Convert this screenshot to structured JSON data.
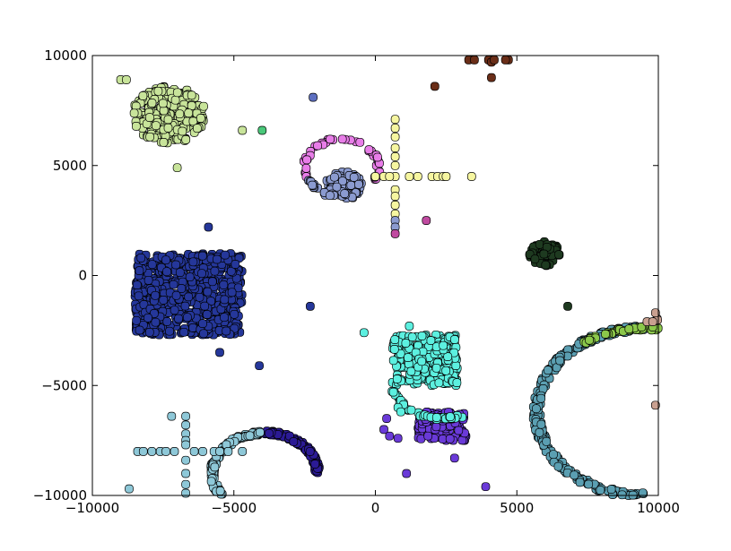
{
  "chart_data": {
    "type": "scatter",
    "xlim": [
      -10000,
      10000
    ],
    "ylim": [
      -10000,
      10000
    ],
    "x_ticks": [
      -10000,
      -5000,
      0,
      5000,
      10000
    ],
    "y_ticks": [
      -10000,
      -5000,
      0,
      5000,
      10000
    ],
    "x_tick_labels": [
      "−10000",
      "−5000",
      "0",
      "5000",
      "10000"
    ],
    "y_tick_labels": [
      "−10000",
      "−5000",
      "0",
      "5000",
      "10000"
    ],
    "grid": false,
    "legend": "none",
    "clusters": [
      {
        "shape": "rect",
        "color": "#25379a",
        "x": [
          -8500,
          -4700
        ],
        "y": [
          -2700,
          1000
        ],
        "n": 650
      },
      {
        "shape": "blob",
        "color": "#c8e49a",
        "cx": -7300,
        "cy": 7300,
        "r": 1300,
        "n": 260
      },
      {
        "shape": "blob",
        "color": "#8b9bd0",
        "cx": -1100,
        "cy": 4100,
        "r": 650,
        "n": 90
      },
      {
        "shape": "blob",
        "color": "#1e3a20",
        "cx": 6000,
        "cy": 1000,
        "r": 550,
        "n": 70
      },
      {
        "shape": "rect",
        "color": "#5cf0e0",
        "x": [
          600,
          2900
        ],
        "y": [
          -5000,
          -2700
        ],
        "n": 260
      },
      {
        "shape": "rect",
        "color": "#6a3ad8",
        "x": [
          1500,
          3200
        ],
        "y": [
          -7500,
          -6200
        ],
        "n": 140
      },
      {
        "shape": "arc",
        "color": "#5b9fb2",
        "cx": 9500,
        "cy": -6200,
        "r": 3800,
        "w": 130,
        "a": [
          90,
          270
        ],
        "n": 260
      },
      {
        "shape": "arc",
        "color": "#8bc84a",
        "cx": 9500,
        "cy": -6200,
        "r": 3800,
        "w": 80,
        "a": [
          80,
          125
        ],
        "n": 40
      },
      {
        "shape": "arc",
        "color": "#2b1a95",
        "cx": -3900,
        "cy": -9000,
        "r": 1850,
        "w": 90,
        "a": [
          0,
          90
        ],
        "n": 120
      },
      {
        "shape": "arc",
        "color": "#8ec8d8",
        "cx": -3900,
        "cy": -9000,
        "r": 1850,
        "w": 90,
        "a": [
          95,
          215
        ],
        "n": 110
      },
      {
        "shape": "arc",
        "color": "#e87de8",
        "cx": -1200,
        "cy": 4900,
        "r": 1300,
        "w": 70,
        "a": [
          -25,
          200
        ],
        "n": 45
      },
      {
        "shape": "arc",
        "color": "#8b9bd0",
        "cx": -1200,
        "cy": 4900,
        "r": 1300,
        "w": 70,
        "a": [
          205,
          260
        ],
        "n": 18
      },
      {
        "shape": "arc",
        "color": "#5cf0e0",
        "cx": 2400,
        "cy": -4600,
        "r": 1900,
        "w": 70,
        "a": [
          200,
          290
        ],
        "n": 50
      },
      {
        "shape": "arc",
        "color": "#c9a090",
        "cx": 9500,
        "cy": -6200,
        "r": 4200,
        "w": 60,
        "a": [
          60,
          85
        ],
        "n": 18
      }
    ],
    "points": [
      {
        "color": "#f6f6a0",
        "xy": [
          [
            700,
            7100
          ],
          [
            700,
            6700
          ],
          [
            700,
            6300
          ],
          [
            700,
            5800
          ],
          [
            700,
            5400
          ],
          [
            700,
            5000
          ],
          [
            700,
            4500
          ],
          [
            700,
            3900
          ],
          [
            700,
            3600
          ],
          [
            700,
            3200
          ],
          [
            700,
            2800
          ],
          [
            0,
            4500
          ],
          [
            300,
            4500
          ],
          [
            500,
            4500
          ],
          [
            1200,
            4500
          ],
          [
            1500,
            4500
          ],
          [
            2000,
            4500
          ],
          [
            2200,
            4500
          ],
          [
            2400,
            4500
          ],
          [
            2500,
            4500
          ],
          [
            3400,
            4500
          ]
        ]
      },
      {
        "color": "#8b9bd0",
        "xy": [
          [
            700,
            2500
          ],
          [
            700,
            2200
          ]
        ]
      },
      {
        "color": "#c04aa0",
        "xy": [
          [
            700,
            1900
          ],
          [
            1800,
            2500
          ]
        ]
      },
      {
        "color": "#5d6fc0",
        "xy": [
          [
            -2200,
            8100
          ]
        ]
      },
      {
        "color": "#4ac87a",
        "xy": [
          [
            -4000,
            6600
          ]
        ]
      },
      {
        "color": "#c8e49a",
        "xy": [
          [
            -9000,
            8900
          ],
          [
            -8800,
            8900
          ],
          [
            -4700,
            6600
          ],
          [
            -7000,
            4900
          ]
        ]
      },
      {
        "color": "#6a2e18",
        "xy": [
          [
            3300,
            9800
          ],
          [
            3500,
            9800
          ],
          [
            4000,
            9800
          ],
          [
            4100,
            9700
          ],
          [
            4700,
            9800
          ],
          [
            4600,
            9800
          ],
          [
            4200,
            9800
          ],
          [
            2100,
            8600
          ],
          [
            4100,
            9000
          ]
        ]
      },
      {
        "color": "#25379a",
        "xy": [
          [
            -5900,
            2200
          ],
          [
            -2300,
            -1400
          ],
          [
            -5500,
            -3500
          ],
          [
            -4100,
            -4100
          ]
        ]
      },
      {
        "color": "#1e3a20",
        "xy": [
          [
            6800,
            -1400
          ]
        ]
      },
      {
        "color": "#5cf0e0",
        "xy": [
          [
            -400,
            -2600
          ],
          [
            1200,
            -2300
          ],
          [
            800,
            -6000
          ],
          [
            900,
            -6200
          ]
        ]
      },
      {
        "color": "#6a3ad8",
        "xy": [
          [
            400,
            -6500
          ],
          [
            300,
            -7000
          ],
          [
            500,
            -7300
          ],
          [
            800,
            -7400
          ],
          [
            1100,
            -9000
          ],
          [
            2800,
            -8300
          ],
          [
            3900,
            -9600
          ]
        ]
      },
      {
        "color": "#8ec8d8",
        "xy": [
          [
            -7200,
            -6400
          ],
          [
            -6700,
            -6400
          ],
          [
            -6700,
            -6800
          ],
          [
            -6700,
            -7200
          ],
          [
            -6700,
            -7500
          ],
          [
            -6700,
            -7700
          ],
          [
            -6700,
            -8400
          ],
          [
            -6700,
            -9000
          ],
          [
            -6700,
            -9500
          ],
          [
            -6700,
            -9900
          ],
          [
            -8400,
            -8000
          ],
          [
            -8200,
            -8000
          ],
          [
            -7900,
            -8000
          ],
          [
            -7600,
            -8000
          ],
          [
            -7400,
            -8000
          ],
          [
            -7100,
            -8000
          ],
          [
            -6400,
            -8000
          ],
          [
            -6100,
            -8000
          ],
          [
            -5700,
            -8000
          ],
          [
            -5500,
            -8000
          ],
          [
            -5200,
            -8000
          ],
          [
            -4700,
            -8000
          ],
          [
            -8700,
            -9700
          ]
        ]
      },
      {
        "color": "#c9a090",
        "xy": [
          [
            9600,
            -2100
          ],
          [
            9800,
            -2100
          ],
          [
            9900,
            -1700
          ],
          [
            9900,
            -5900
          ]
        ]
      }
    ]
  }
}
